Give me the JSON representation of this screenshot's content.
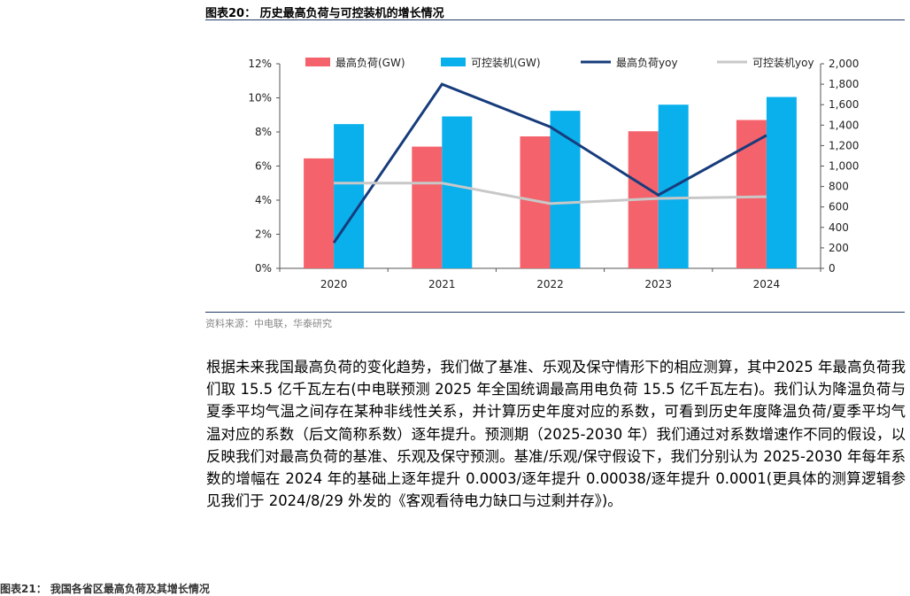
{
  "figure_title": "图表20： 历史最高负荷与可控装机的增长情况",
  "source": "资料来源：中电联，华泰研究",
  "paragraph": "根据未来我国最高负荷的变化趋势，我们做了基准、乐观及保守情形下的相应测算，其中2025 年最高负荷我们取 15.5 亿千瓦左右(中电联预测 2025 年全国统调最高用电负荷 15.5 亿千瓦左右)。我们认为降温负荷与夏季平均气温之间存在某种非线性关系，并计算历史年度对应的系数，可看到历史年度降温负荷/夏季平均气温对应的系数（后文简称系数）逐年提升。预测期（2025-2030 年）我们通过对系数增速作不同的假设，以反映我们对最高负荷的基准、乐观及保守预测。基准/乐观/保守假设下，我们分别认为 2025-2030 年每年系数的增幅在 2024 年的基础上逐年提升 0.0003/逐年提升 0.00038/逐年提升 0.0001(更具体的测算逻辑参见我们于 2024/8/29 外发的《客观看待电力缺口与过剩并存》)。",
  "next_caption": "图表21： 我国各省区最高负荷及其增长情况",
  "chart_data": {
    "type": "bar",
    "categories": [
      "2020",
      "2021",
      "2022",
      "2023",
      "2024"
    ],
    "series": [
      {
        "name": "最高负荷(GW)",
        "kind": "bar",
        "axis": "right",
        "color": "#f4636b",
        "values": [
          1075,
          1190,
          1290,
          1340,
          1450
        ]
      },
      {
        "name": "可控装机(GW)",
        "kind": "bar",
        "axis": "right",
        "color": "#0ab0ec",
        "values": [
          1410,
          1485,
          1540,
          1600,
          1675
        ]
      },
      {
        "name": "最高负荷yoy",
        "kind": "line",
        "axis": "left",
        "color": "#173c7c",
        "values": [
          0.015,
          0.108,
          0.083,
          0.043,
          0.078
        ]
      },
      {
        "name": "可控装机yoy",
        "kind": "line",
        "axis": "left",
        "color": "#c8c8c8",
        "values": [
          0.05,
          0.05,
          0.038,
          0.041,
          0.042
        ]
      }
    ],
    "left_axis": {
      "min": 0,
      "max": 0.12,
      "ticks": [
        "0%",
        "2%",
        "4%",
        "6%",
        "8%",
        "10%",
        "12%"
      ]
    },
    "right_axis": {
      "min": 0,
      "max": 2000,
      "ticks": [
        "0",
        "200",
        "400",
        "600",
        "800",
        "1,000",
        "1,200",
        "1,400",
        "1,600",
        "1,800",
        "2,000"
      ]
    },
    "legend": "top",
    "grid": false
  }
}
